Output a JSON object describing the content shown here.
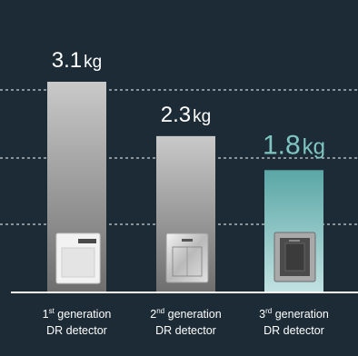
{
  "chart_data": {
    "type": "bar",
    "categories": [
      {
        "sup_prefix": "1",
        "sup": "st",
        "line1_rest": " generation",
        "line2": "DR detector"
      },
      {
        "sup_prefix": "2",
        "sup": "nd",
        "line1_rest": " generation",
        "line2": "DR detector"
      },
      {
        "sup_prefix": "3",
        "sup": "rd",
        "line1_rest": " generation",
        "line2": "DR detector"
      }
    ],
    "values": [
      3.1,
      2.3,
      1.8
    ],
    "value_labels": [
      {
        "number": "3.1",
        "unit": "kg"
      },
      {
        "number": "2.3",
        "unit": "kg"
      },
      {
        "number": "1.8",
        "unit": "kg"
      }
    ],
    "ylim": [
      0,
      3.1
    ],
    "grid": true,
    "gridlines": [
      1.0,
      2.0,
      3.0
    ],
    "title": "",
    "xlabel": "",
    "ylabel": "",
    "colors": {
      "background": "#1c2b35",
      "bar_top": "#c9c9c9",
      "bar_bottom": "#6e6e6e",
      "highlight_bar_top": "#5aa6a6",
      "highlight_bar_bottom": "#c2e2e2",
      "highlight_label": "#7fc6c2",
      "label": "#ffffff",
      "grid": "#c8d0d4"
    },
    "highlight_index": 2
  }
}
